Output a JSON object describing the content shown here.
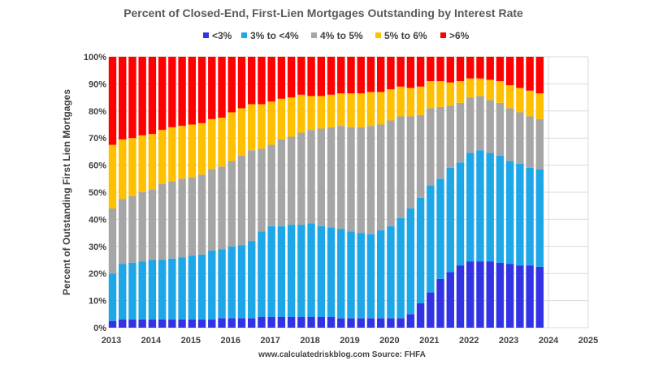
{
  "chart_data": {
    "type": "bar",
    "stacked": true,
    "title": "Percent of Closed-End, First-Lien Mortgages Outstanding by Interest Rate",
    "ylabel": "Percent of Outstanding First Lien Mortgages",
    "xlabel": "",
    "ylim": [
      0,
      100
    ],
    "xlim": [
      2013,
      2025
    ],
    "grid": true,
    "legend_position": "top",
    "x_ticks": [
      "2013",
      "2014",
      "2015",
      "2016",
      "2017",
      "2018",
      "2019",
      "2020",
      "2021",
      "2022",
      "2023",
      "2024",
      "2025"
    ],
    "y_ticks": [
      "0%",
      "10%",
      "20%",
      "30%",
      "40%",
      "50%",
      "60%",
      "70%",
      "80%",
      "90%",
      "100%"
    ],
    "source_text": "www.calculatedriskblog.com   Source: FHFA",
    "x": [
      2013.0,
      2013.25,
      2013.5,
      2013.75,
      2014.0,
      2014.25,
      2014.5,
      2014.75,
      2015.0,
      2015.25,
      2015.5,
      2015.75,
      2016.0,
      2016.25,
      2016.5,
      2016.75,
      2017.0,
      2017.25,
      2017.5,
      2017.75,
      2018.0,
      2018.25,
      2018.5,
      2018.75,
      2019.0,
      2019.25,
      2019.5,
      2019.75,
      2020.0,
      2020.25,
      2020.5,
      2020.75,
      2021.0,
      2021.25,
      2021.5,
      2021.75,
      2022.0,
      2022.25,
      2022.5,
      2022.75,
      2023.0,
      2023.25,
      2023.5,
      2023.75
    ],
    "series": [
      {
        "name": "<3%",
        "color": "#3333e6",
        "values": [
          2.5,
          3,
          3,
          3,
          3,
          3,
          3,
          3,
          3,
          3,
          3,
          3.5,
          3.5,
          3.5,
          3.5,
          4,
          4,
          4,
          4,
          4,
          4,
          4,
          4,
          3.5,
          3.5,
          3.5,
          3.5,
          3.5,
          3.5,
          3.5,
          5,
          9,
          13,
          18,
          20.5,
          23,
          24.5,
          24.5,
          24.5,
          24,
          23.5,
          23,
          23,
          22.5
        ]
      },
      {
        "name": "3% to <4%",
        "color": "#1ea7e8",
        "values": [
          17.5,
          20.5,
          21,
          21.5,
          22,
          22,
          22.5,
          23,
          23.5,
          24,
          25.5,
          25.5,
          26.5,
          27,
          28.5,
          31.5,
          33.5,
          33.5,
          34,
          34,
          34.5,
          33.5,
          33,
          33,
          32,
          31.5,
          31,
          32.5,
          34,
          37,
          39,
          39,
          39.5,
          37,
          38.5,
          38,
          40,
          41,
          40,
          39.5,
          38,
          37.5,
          36,
          36
        ]
      },
      {
        "name": "4% to 5%",
        "color": "#a6a6a6",
        "values": [
          24,
          24,
          24.5,
          25.5,
          26,
          28,
          28.5,
          29,
          29,
          29.5,
          30,
          30.5,
          31.5,
          33,
          33.5,
          30.5,
          30,
          32,
          32.5,
          34,
          34.5,
          36,
          37,
          38,
          38.5,
          39,
          40,
          39,
          39,
          37.5,
          34,
          30.5,
          28.5,
          26.5,
          23,
          22,
          20.5,
          20,
          19.5,
          19.5,
          19.5,
          19,
          19,
          18.5
        ]
      },
      {
        "name": "5% to 6%",
        "color": "#ffc000",
        "values": [
          23.5,
          22,
          21.5,
          21,
          20.5,
          20,
          20,
          19.5,
          19.5,
          19,
          18.5,
          18,
          18,
          17.5,
          17,
          16.5,
          16,
          15,
          14.5,
          14,
          12.5,
          12,
          12,
          12,
          12.5,
          12.5,
          12.5,
          12,
          11.5,
          11,
          10.5,
          10.5,
          10,
          9.5,
          8.5,
          8,
          7,
          6.5,
          7.5,
          8,
          8.5,
          9,
          9.5,
          9.5
        ]
      },
      {
        "name": ">6%",
        "color": "#ff0000",
        "values": [
          32.5,
          30.5,
          30,
          29,
          28.5,
          27,
          26,
          25.5,
          25,
          24.5,
          23,
          22.5,
          20.5,
          19,
          17.5,
          17.5,
          16.5,
          15.5,
          15,
          14,
          14.5,
          14.5,
          14,
          13.5,
          13.5,
          13.5,
          13,
          13,
          12,
          11,
          11.5,
          11,
          9,
          9,
          9.5,
          9,
          8,
          8,
          8.5,
          9,
          10.5,
          11.5,
          12.5,
          13.5
        ]
      }
    ]
  }
}
